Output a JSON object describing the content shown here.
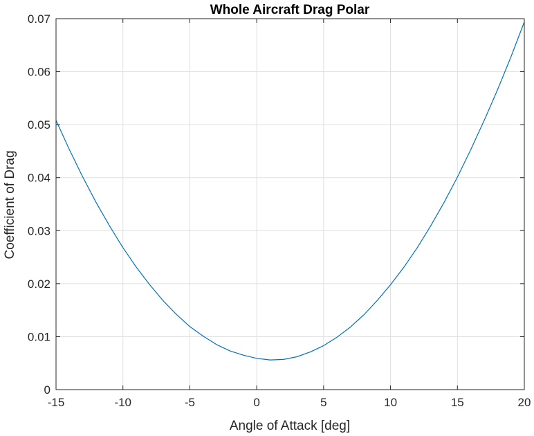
{
  "chart_data": {
    "type": "line",
    "title": "Whole Aircraft Drag Polar",
    "xlabel": "Angle of Attack [deg]",
    "ylabel": "Coefficient of Drag",
    "xlim": [
      -15,
      20
    ],
    "ylim": [
      0,
      0.07
    ],
    "xticks": [
      -15,
      -10,
      -5,
      0,
      5,
      10,
      15,
      20
    ],
    "xtick_labels": [
      "-15",
      "-10",
      "-5",
      "0",
      "5",
      "10",
      "15",
      "20"
    ],
    "yticks": [
      0,
      0.01,
      0.02,
      0.03,
      0.04,
      0.05,
      0.06,
      0.07
    ],
    "ytick_labels": [
      "0",
      "0.01",
      "0.02",
      "0.03",
      "0.04",
      "0.05",
      "0.06",
      "0.07"
    ],
    "grid": true,
    "series": [
      {
        "color": "#0072bd",
        "x": [
          -15,
          -14,
          -13,
          -12,
          -11,
          -10,
          -9,
          -8,
          -7,
          -6,
          -5,
          -4,
          -3,
          -2,
          -1,
          0,
          1,
          2,
          3,
          4,
          5,
          6,
          7,
          8,
          9,
          10,
          11,
          12,
          13,
          14,
          15,
          16,
          17,
          18,
          19,
          20
        ],
        "y": [
          0.0508,
          0.0453,
          0.0401,
          0.0353,
          0.0309,
          0.0268,
          0.0231,
          0.0198,
          0.0168,
          0.0142,
          0.0119,
          0.0101,
          0.0085,
          0.0073,
          0.0065,
          0.0059,
          0.0056,
          0.0057,
          0.0062,
          0.0071,
          0.0083,
          0.0099,
          0.0118,
          0.0141,
          0.0168,
          0.0198,
          0.0231,
          0.0268,
          0.0309,
          0.0353,
          0.0401,
          0.0453,
          0.0508,
          0.0566,
          0.0628,
          0.0694
        ]
      }
    ]
  }
}
